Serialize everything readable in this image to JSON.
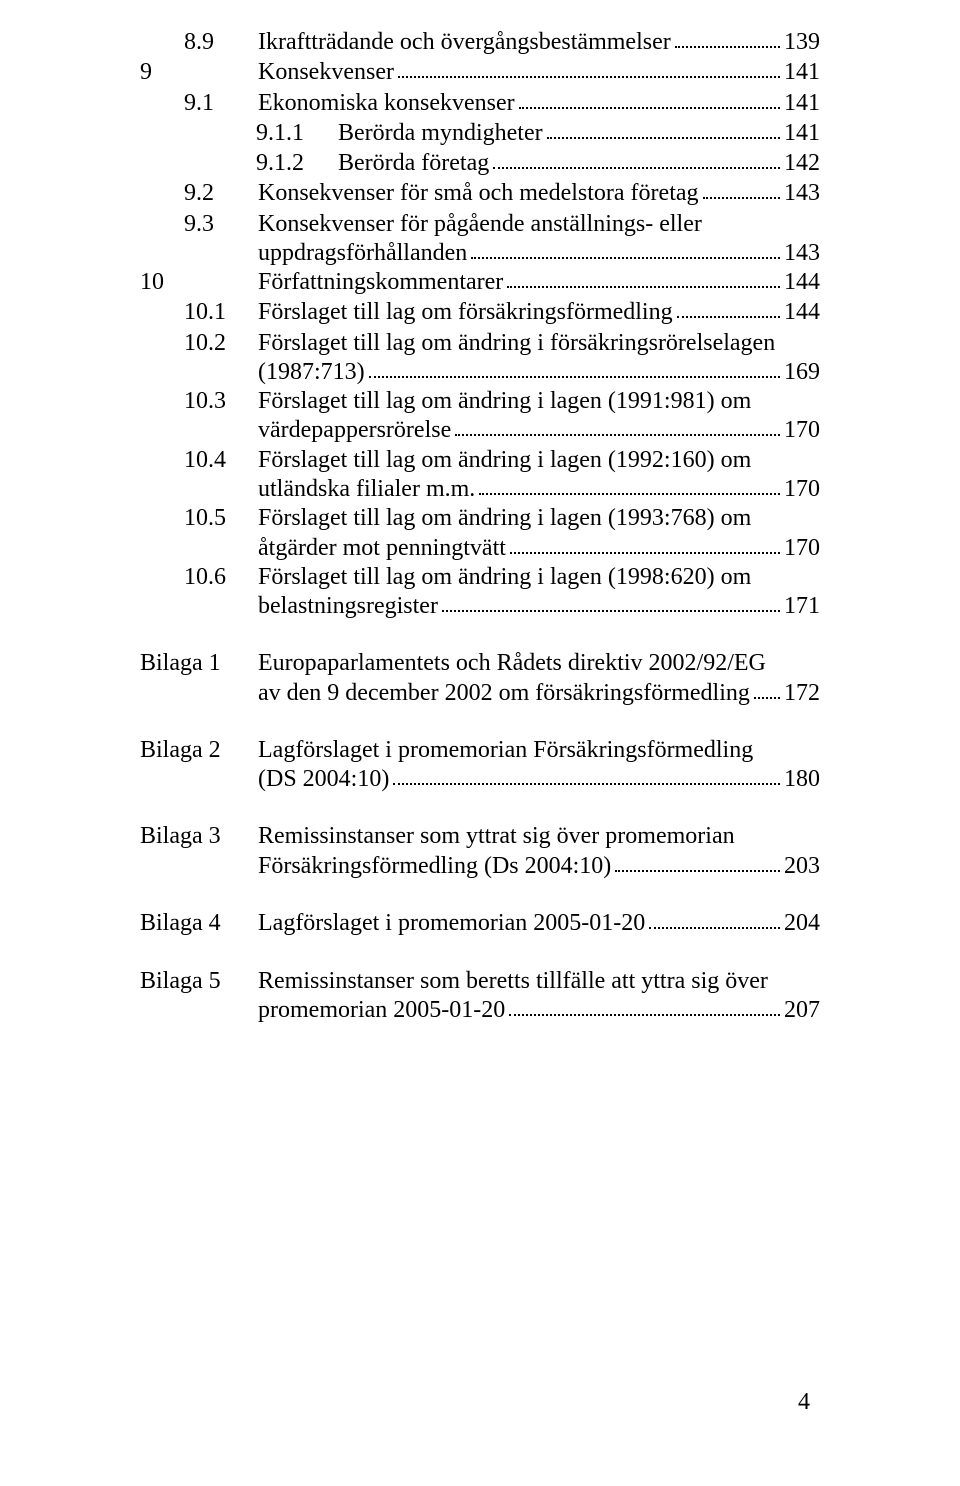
{
  "entries": [
    {
      "kind": "line",
      "indent": 1,
      "numClass": "num-w1",
      "num": "8.9",
      "title": "Ikraftträdande och övergångsbestämmelser",
      "page": "139"
    },
    {
      "kind": "line",
      "indent": 0,
      "numClass": "num-w0",
      "num": "9",
      "title": "Konsekvenser",
      "page": "141"
    },
    {
      "kind": "line",
      "indent": 1,
      "numClass": "num-w1",
      "num": "9.1",
      "title": "Ekonomiska konsekvenser",
      "page": "141"
    },
    {
      "kind": "line",
      "indent": 2,
      "numClass": "num-w2",
      "num": "9.1.1",
      "title": "Berörda myndigheter",
      "page": "141"
    },
    {
      "kind": "line",
      "indent": 2,
      "numClass": "num-w2",
      "num": "9.1.2",
      "title": "Berörda företag",
      "page": "142"
    },
    {
      "kind": "line",
      "indent": 1,
      "numClass": "num-w1",
      "num": "9.2",
      "title": "Konsekvenser för små och medelstora företag",
      "page": "143"
    },
    {
      "kind": "multi",
      "indent": 1,
      "numClass": "num-w1",
      "num": "9.3",
      "lines": [
        "Konsekvenser för pågående anställnings- eller",
        "uppdragsförhållanden"
      ],
      "page": "143"
    },
    {
      "kind": "line",
      "indent": 0,
      "numClass": "num-w0",
      "num": "10",
      "title": "Författningskommentarer",
      "page": "144"
    },
    {
      "kind": "line",
      "indent": 1,
      "numClass": "num-w1",
      "num": "10.1",
      "title": "Förslaget till lag om försäkringsförmedling",
      "page": "144"
    },
    {
      "kind": "multi",
      "indent": 1,
      "numClass": "num-w1",
      "num": "10.2",
      "lines": [
        "Förslaget till lag om ändring i försäkringsrörelselagen",
        "(1987:713)"
      ],
      "page": "169"
    },
    {
      "kind": "multi",
      "indent": 1,
      "numClass": "num-w1",
      "num": "10.3",
      "lines": [
        "Förslaget till lag om ändring i lagen (1991:981) om",
        "värdepappersrörelse"
      ],
      "page": "170"
    },
    {
      "kind": "multi",
      "indent": 1,
      "numClass": "num-w1",
      "num": "10.4",
      "lines": [
        "Förslaget till lag om ändring i lagen (1992:160) om",
        "utländska filialer m.m. "
      ],
      "page": "170"
    },
    {
      "kind": "multi",
      "indent": 1,
      "numClass": "num-w1",
      "num": "10.5",
      "lines": [
        "Förslaget till lag om ändring i lagen (1993:768) om",
        "åtgärder mot penningtvätt"
      ],
      "page": "170"
    },
    {
      "kind": "multi",
      "indent": 1,
      "numClass": "num-w1",
      "num": "10.6",
      "lines": [
        "Förslaget till lag om ändring i lagen (1998:620) om",
        "belastningsregister"
      ],
      "page": "171"
    },
    {
      "kind": "blank"
    },
    {
      "kind": "multi",
      "indent": 0,
      "numClass": "num-wb",
      "num": "Bilaga 1",
      "lines": [
        "Europaparlamentets och Rådets direktiv 2002/92/EG",
        "av den 9 december 2002 om försäkringsförmedling"
      ],
      "page": "172"
    },
    {
      "kind": "blank"
    },
    {
      "kind": "multi",
      "indent": 0,
      "numClass": "num-wb",
      "num": "Bilaga 2",
      "lines": [
        "Lagförslaget i promemorian Försäkringsförmedling",
        "(DS 2004:10)"
      ],
      "page": "180"
    },
    {
      "kind": "blank"
    },
    {
      "kind": "multi",
      "indent": 0,
      "numClass": "num-wb",
      "num": "Bilaga 3",
      "lines": [
        "Remissinstanser som yttrat sig över promemorian",
        "Försäkringsförmedling (Ds 2004:10)"
      ],
      "page": "203"
    },
    {
      "kind": "blank"
    },
    {
      "kind": "line",
      "indent": 0,
      "numClass": "num-wb",
      "num": "Bilaga 4",
      "title": "Lagförslaget i promemorian 2005-01-20",
      "page": "204"
    },
    {
      "kind": "blank"
    },
    {
      "kind": "multi",
      "indent": 0,
      "numClass": "num-wb",
      "num": "Bilaga 5",
      "lines": [
        "Remissinstanser som beretts tillfälle att yttra sig över",
        "promemorian 2005-01-20"
      ],
      "page": "207"
    }
  ],
  "pageNumber": "4"
}
